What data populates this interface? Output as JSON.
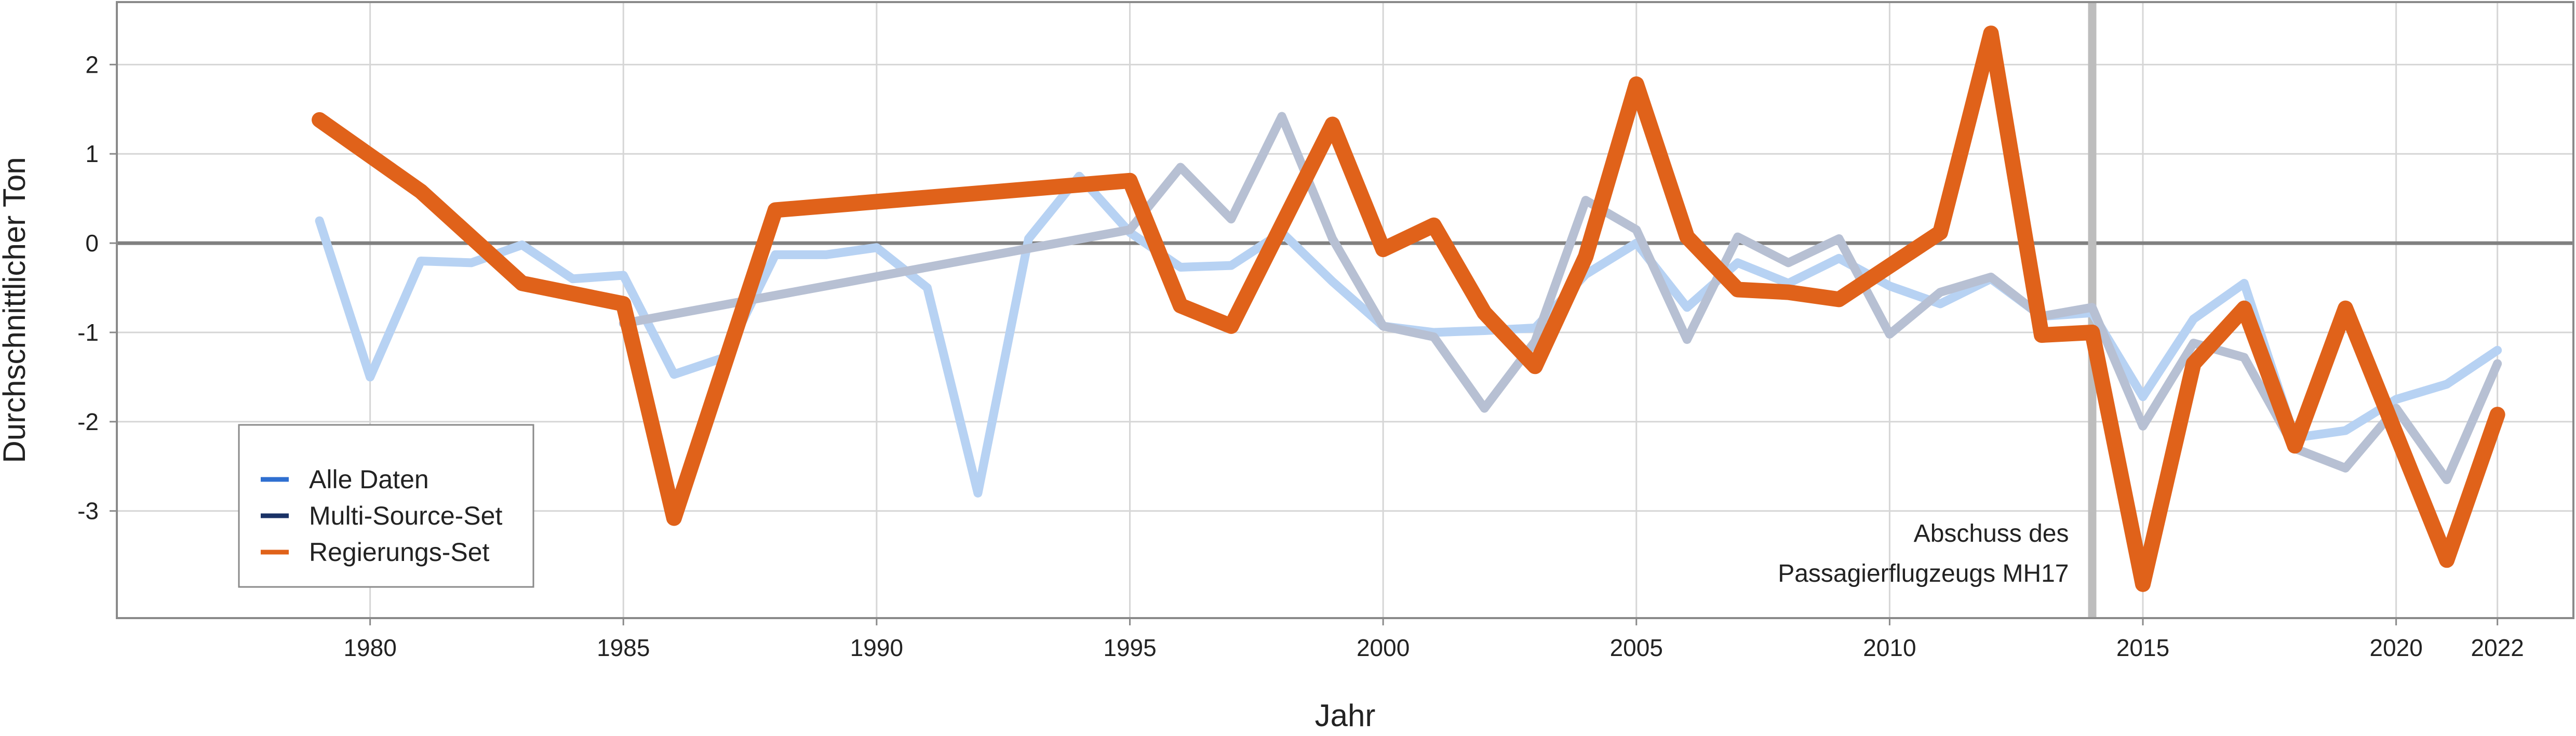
{
  "chart_data": {
    "type": "line",
    "xlabel": "Jahr",
    "ylabel": "Durchschnittlicher Ton",
    "xlim": [
      1975,
      2023.5
    ],
    "ylim": [
      -4.2,
      2.7
    ],
    "x_ticks": [
      1980,
      1985,
      1990,
      1995,
      2000,
      2005,
      2010,
      2015,
      2020,
      2022
    ],
    "y_ticks": [
      2,
      1,
      0,
      -1,
      -2,
      -3
    ],
    "grid": true,
    "legend_position": "bottom-left",
    "reference_hline": 0,
    "event_vline": {
      "x": 2014,
      "label_lines": [
        "Abschuss des",
        "Passagierflugzeugs MH17"
      ]
    },
    "series": [
      {
        "name": "Alle Daten",
        "legend_color": "#2f6fd0",
        "line_color": "#b7d2f3",
        "points": [
          [
            1979,
            0.25
          ],
          [
            1980,
            -1.5
          ],
          [
            1981,
            -0.2
          ],
          [
            1982,
            -0.22
          ],
          [
            1983,
            -0.02
          ],
          [
            1984,
            -0.4
          ],
          [
            1985,
            -0.36
          ],
          [
            1986,
            -1.47
          ],
          [
            1987,
            -1.28
          ],
          [
            1988,
            -0.13
          ],
          [
            1989,
            -0.13
          ],
          [
            1990,
            -0.05
          ],
          [
            1991,
            -0.5
          ],
          [
            1992,
            -2.8
          ],
          [
            1993,
            0.05
          ],
          [
            1994,
            0.75
          ],
          [
            1995,
            0.12
          ],
          [
            1996,
            -0.27
          ],
          [
            1997,
            -0.25
          ],
          [
            1998,
            0.12
          ],
          [
            1999,
            -0.43
          ],
          [
            2000,
            -0.93
          ],
          [
            2001,
            -1.0
          ],
          [
            2002,
            -0.98
          ],
          [
            2003,
            -0.95
          ],
          [
            2004,
            -0.35
          ],
          [
            2005,
            0.0
          ],
          [
            2006,
            -0.72
          ],
          [
            2007,
            -0.22
          ],
          [
            2008,
            -0.45
          ],
          [
            2009,
            -0.17
          ],
          [
            2010,
            -0.48
          ],
          [
            2011,
            -0.68
          ],
          [
            2012,
            -0.4
          ],
          [
            2013,
            -0.82
          ],
          [
            2014,
            -0.78
          ],
          [
            2015,
            -1.72
          ],
          [
            2016,
            -0.85
          ],
          [
            2017,
            -0.45
          ],
          [
            2018,
            -2.18
          ],
          [
            2019,
            -2.1
          ],
          [
            2020,
            -1.75
          ],
          [
            2021,
            -1.58
          ],
          [
            2022,
            -1.2
          ]
        ]
      },
      {
        "name": "Multi-Source-Set",
        "legend_color": "#1a3266",
        "line_color": "#b7c0d3",
        "points": [
          [
            1985,
            -0.9
          ],
          [
            1995,
            0.15
          ],
          [
            1996,
            0.85
          ],
          [
            1997,
            0.27
          ],
          [
            1998,
            1.42
          ],
          [
            1999,
            0.05
          ],
          [
            2000,
            -0.93
          ],
          [
            2001,
            -1.05
          ],
          [
            2002,
            -1.85
          ],
          [
            2003,
            -1.1
          ],
          [
            2004,
            0.48
          ],
          [
            2005,
            0.15
          ],
          [
            2006,
            -1.08
          ],
          [
            2007,
            0.07
          ],
          [
            2008,
            -0.22
          ],
          [
            2009,
            0.05
          ],
          [
            2010,
            -1.02
          ],
          [
            2011,
            -0.55
          ],
          [
            2012,
            -0.38
          ],
          [
            2013,
            -0.82
          ],
          [
            2014,
            -0.72
          ],
          [
            2015,
            -2.05
          ],
          [
            2016,
            -1.12
          ],
          [
            2017,
            -1.28
          ],
          [
            2018,
            -2.3
          ],
          [
            2019,
            -2.52
          ],
          [
            2020,
            -1.85
          ],
          [
            2021,
            -2.65
          ],
          [
            2022,
            -1.35
          ]
        ]
      },
      {
        "name": "Regierungs-Set",
        "legend_color": "#e0621a",
        "line_color": "#e0621a",
        "points": [
          [
            1979,
            1.38
          ],
          [
            1981,
            0.58
          ],
          [
            1983,
            -0.45
          ],
          [
            1985,
            -0.68
          ],
          [
            1986,
            -3.08
          ],
          [
            1988,
            0.37
          ],
          [
            1995,
            0.7
          ],
          [
            1996,
            -0.7
          ],
          [
            1997,
            -0.93
          ],
          [
            1999,
            1.33
          ],
          [
            2000,
            -0.07
          ],
          [
            2001,
            0.2
          ],
          [
            2002,
            -0.78
          ],
          [
            2003,
            -1.38
          ],
          [
            2004,
            -0.15
          ],
          [
            2005,
            1.78
          ],
          [
            2006,
            0.07
          ],
          [
            2007,
            -0.52
          ],
          [
            2008,
            -0.55
          ],
          [
            2009,
            -0.63
          ],
          [
            2011,
            0.12
          ],
          [
            2012,
            2.35
          ],
          [
            2013,
            -1.03
          ],
          [
            2014,
            -1.0
          ],
          [
            2015,
            -3.82
          ],
          [
            2016,
            -1.35
          ],
          [
            2017,
            -0.73
          ],
          [
            2018,
            -2.27
          ],
          [
            2019,
            -0.73
          ],
          [
            2021,
            -3.55
          ],
          [
            2022,
            -1.92
          ]
        ]
      }
    ]
  }
}
